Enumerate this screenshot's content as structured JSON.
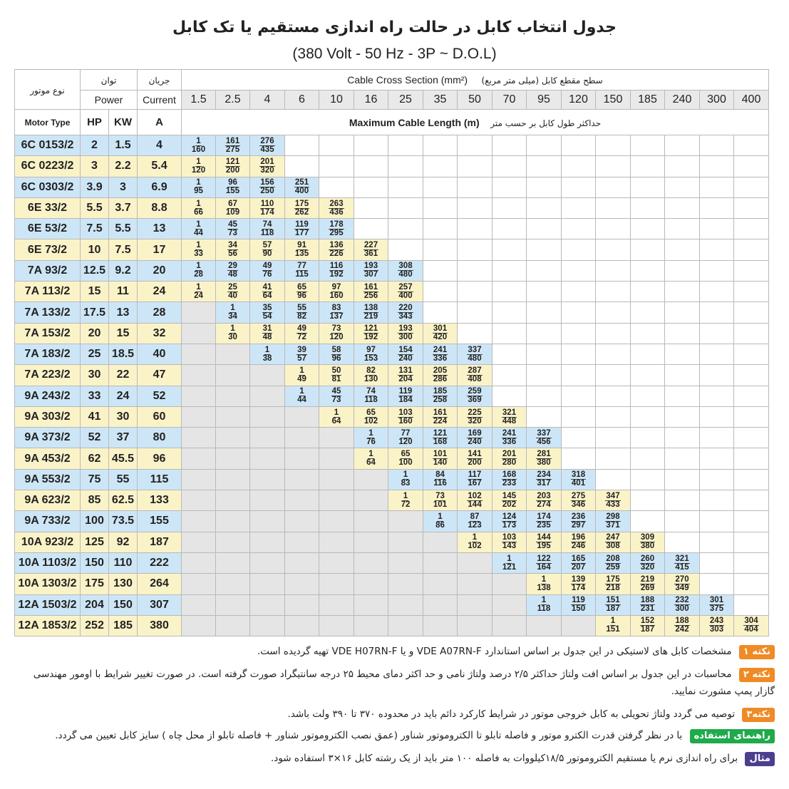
{
  "title_fa": "جدول انتخاب کابل در حالت راه اندازی مستقیم یا تک کابل",
  "title_en": "(380 Volt - 50 Hz - 3P ~ D.O.L)",
  "header": {
    "motor_type_fa": "نوع موتور",
    "motor_type_en": "Motor Type",
    "power_fa": "توان",
    "power_en": "Power",
    "current_fa": "جریان",
    "current_en": "Current",
    "hp": "HP",
    "kw": "KW",
    "amp": "A",
    "ccs_en": "Cable Cross Section (mm²)",
    "ccs_fa_paren": "(میلی متر مربع)",
    "ccs_fa": "سطح مقطع کابل",
    "mcl_en": "Maximum Cable Length (m)",
    "mcl_fa": "حداکثر طول کابل بر حسب متر"
  },
  "sizes": [
    "1.5",
    "2.5",
    "4",
    "6",
    "10",
    "16",
    "25",
    "35",
    "50",
    "70",
    "95",
    "120",
    "150",
    "185",
    "240",
    "300",
    "400"
  ],
  "rows": [
    {
      "motor": "6C 0153/2",
      "hp": "2",
      "kw": "1.5",
      "a": "4",
      "start": 0,
      "vals": [
        [
          "1",
          "160"
        ],
        [
          "161",
          "275"
        ],
        [
          "276",
          "435"
        ]
      ]
    },
    {
      "motor": "6C 0223/2",
      "hp": "3",
      "kw": "2.2",
      "a": "5.4",
      "start": 0,
      "vals": [
        [
          "1",
          "120"
        ],
        [
          "121",
          "200"
        ],
        [
          "201",
          "320"
        ]
      ]
    },
    {
      "motor": "6C 0303/2",
      "hp": "3.9",
      "kw": "3",
      "a": "6.9",
      "start": 0,
      "vals": [
        [
          "1",
          "95"
        ],
        [
          "96",
          "155"
        ],
        [
          "156",
          "250"
        ],
        [
          "251",
          "400"
        ]
      ]
    },
    {
      "motor": "6E 33/2",
      "hp": "5.5",
      "kw": "3.7",
      "a": "8.8",
      "start": 0,
      "vals": [
        [
          "1",
          "66"
        ],
        [
          "67",
          "109"
        ],
        [
          "110",
          "174"
        ],
        [
          "175",
          "262"
        ],
        [
          "263",
          "436"
        ]
      ]
    },
    {
      "motor": "6E 53/2",
      "hp": "7.5",
      "kw": "5.5",
      "a": "13",
      "start": 0,
      "vals": [
        [
          "1",
          "44"
        ],
        [
          "45",
          "73"
        ],
        [
          "74",
          "118"
        ],
        [
          "119",
          "177"
        ],
        [
          "178",
          "295"
        ]
      ]
    },
    {
      "motor": "6E 73/2",
      "hp": "10",
      "kw": "7.5",
      "a": "17",
      "start": 0,
      "vals": [
        [
          "1",
          "33"
        ],
        [
          "34",
          "56"
        ],
        [
          "57",
          "90"
        ],
        [
          "91",
          "135"
        ],
        [
          "136",
          "226"
        ],
        [
          "227",
          "361"
        ]
      ]
    },
    {
      "motor": "7A 93/2",
      "hp": "12.5",
      "kw": "9.2",
      "a": "20",
      "start": 0,
      "vals": [
        [
          "1",
          "28"
        ],
        [
          "29",
          "48"
        ],
        [
          "49",
          "76"
        ],
        [
          "77",
          "115"
        ],
        [
          "116",
          "192"
        ],
        [
          "193",
          "307"
        ],
        [
          "308",
          "480"
        ]
      ]
    },
    {
      "motor": "7A 113/2",
      "hp": "15",
      "kw": "11",
      "a": "24",
      "start": 0,
      "vals": [
        [
          "1",
          "24"
        ],
        [
          "25",
          "40"
        ],
        [
          "41",
          "64"
        ],
        [
          "65",
          "96"
        ],
        [
          "97",
          "160"
        ],
        [
          "161",
          "256"
        ],
        [
          "257",
          "400"
        ]
      ]
    },
    {
      "motor": "7A 133/2",
      "hp": "17.5",
      "kw": "13",
      "a": "28",
      "start": 1,
      "vals": [
        [
          "1",
          "34"
        ],
        [
          "35",
          "54"
        ],
        [
          "55",
          "82"
        ],
        [
          "83",
          "137"
        ],
        [
          "138",
          "219"
        ],
        [
          "220",
          "343"
        ]
      ]
    },
    {
      "motor": "7A 153/2",
      "hp": "20",
      "kw": "15",
      "a": "32",
      "start": 1,
      "vals": [
        [
          "1",
          "30"
        ],
        [
          "31",
          "48"
        ],
        [
          "49",
          "72"
        ],
        [
          "73",
          "120"
        ],
        [
          "121",
          "192"
        ],
        [
          "193",
          "300"
        ],
        [
          "301",
          "420"
        ]
      ]
    },
    {
      "motor": "7A 183/2",
      "hp": "25",
      "kw": "18.5",
      "a": "40",
      "start": 2,
      "vals": [
        [
          "1",
          "38"
        ],
        [
          "39",
          "57"
        ],
        [
          "58",
          "96"
        ],
        [
          "97",
          "153"
        ],
        [
          "154",
          "240"
        ],
        [
          "241",
          "336"
        ],
        [
          "337",
          "480"
        ]
      ]
    },
    {
      "motor": "7A 223/2",
      "hp": "30",
      "kw": "22",
      "a": "47",
      "start": 3,
      "vals": [
        [
          "1",
          "49"
        ],
        [
          "50",
          "81"
        ],
        [
          "82",
          "130"
        ],
        [
          "131",
          "204"
        ],
        [
          "205",
          "286"
        ],
        [
          "287",
          "408"
        ]
      ]
    },
    {
      "motor": "9A 243/2",
      "hp": "33",
      "kw": "24",
      "a": "52",
      "start": 3,
      "vals": [
        [
          "1",
          "44"
        ],
        [
          "45",
          "73"
        ],
        [
          "74",
          "118"
        ],
        [
          "119",
          "184"
        ],
        [
          "185",
          "258"
        ],
        [
          "259",
          "369"
        ]
      ]
    },
    {
      "motor": "9A 303/2",
      "hp": "41",
      "kw": "30",
      "a": "60",
      "start": 4,
      "vals": [
        [
          "1",
          "64"
        ],
        [
          "65",
          "102"
        ],
        [
          "103",
          "160"
        ],
        [
          "161",
          "224"
        ],
        [
          "225",
          "320"
        ],
        [
          "321",
          "448"
        ]
      ]
    },
    {
      "motor": "9A 373/2",
      "hp": "52",
      "kw": "37",
      "a": "80",
      "start": 5,
      "vals": [
        [
          "1",
          "76"
        ],
        [
          "77",
          "120"
        ],
        [
          "121",
          "168"
        ],
        [
          "169",
          "240"
        ],
        [
          "241",
          "336"
        ],
        [
          "337",
          "456"
        ]
      ]
    },
    {
      "motor": "9A 453/2",
      "hp": "62",
      "kw": "45.5",
      "a": "96",
      "start": 5,
      "vals": [
        [
          "1",
          "64"
        ],
        [
          "65",
          "100"
        ],
        [
          "101",
          "140"
        ],
        [
          "141",
          "200"
        ],
        [
          "201",
          "280"
        ],
        [
          "281",
          "380"
        ]
      ]
    },
    {
      "motor": "9A 553/2",
      "hp": "75",
      "kw": "55",
      "a": "115",
      "start": 6,
      "vals": [
        [
          "1",
          "83"
        ],
        [
          "84",
          "116"
        ],
        [
          "117",
          "167"
        ],
        [
          "168",
          "233"
        ],
        [
          "234",
          "317"
        ],
        [
          "318",
          "401"
        ]
      ]
    },
    {
      "motor": "9A 623/2",
      "hp": "85",
      "kw": "62.5",
      "a": "133",
      "start": 6,
      "vals": [
        [
          "1",
          "72"
        ],
        [
          "73",
          "101"
        ],
        [
          "102",
          "144"
        ],
        [
          "145",
          "202"
        ],
        [
          "203",
          "274"
        ],
        [
          "275",
          "346"
        ],
        [
          "347",
          "433"
        ]
      ]
    },
    {
      "motor": "9A 733/2",
      "hp": "100",
      "kw": "73.5",
      "a": "155",
      "start": 7,
      "vals": [
        [
          "1",
          "86"
        ],
        [
          "87",
          "123"
        ],
        [
          "124",
          "173"
        ],
        [
          "174",
          "235"
        ],
        [
          "236",
          "297"
        ],
        [
          "298",
          "371"
        ]
      ]
    },
    {
      "motor": "10A 923/2",
      "hp": "125",
      "kw": "92",
      "a": "187",
      "start": 8,
      "vals": [
        [
          "1",
          "102"
        ],
        [
          "103",
          "143"
        ],
        [
          "144",
          "195"
        ],
        [
          "196",
          "246"
        ],
        [
          "247",
          "308"
        ],
        [
          "309",
          "380"
        ]
      ]
    },
    {
      "motor": "10A 1103/2",
      "hp": "150",
      "kw": "110",
      "a": "222",
      "start": 9,
      "vals": [
        [
          "1",
          "121"
        ],
        [
          "122",
          "164"
        ],
        [
          "165",
          "207"
        ],
        [
          "208",
          "259"
        ],
        [
          "260",
          "320"
        ],
        [
          "321",
          "415"
        ]
      ]
    },
    {
      "motor": "10A 1303/2",
      "hp": "175",
      "kw": "130",
      "a": "264",
      "start": 10,
      "vals": [
        [
          "1",
          "138"
        ],
        [
          "139",
          "174"
        ],
        [
          "175",
          "218"
        ],
        [
          "219",
          "269"
        ],
        [
          "270",
          "349"
        ]
      ]
    },
    {
      "motor": "12A 1503/2",
      "hp": "204",
      "kw": "150",
      "a": "307",
      "start": 10,
      "vals": [
        [
          "1",
          "118"
        ],
        [
          "119",
          "150"
        ],
        [
          "151",
          "187"
        ],
        [
          "188",
          "231"
        ],
        [
          "232",
          "300"
        ],
        [
          "301",
          "375"
        ]
      ]
    },
    {
      "motor": "12A 1853/2",
      "hp": "252",
      "kw": "185",
      "a": "380",
      "start": 12,
      "vals": [
        [
          "1",
          "151"
        ],
        [
          "152",
          "187"
        ],
        [
          "188",
          "242"
        ],
        [
          "243",
          "303"
        ],
        [
          "304",
          "404"
        ]
      ]
    }
  ],
  "colors": {
    "blue": "#cde6f7",
    "yellow": "#fbf3c8",
    "gray": "#e5e5e5",
    "orange": "#f08a24",
    "green": "#1faa4b",
    "purple": "#4b3f8f"
  },
  "notes": [
    {
      "badge": "نکته ۱",
      "color": "orange",
      "text_pre": "مشخصات کابل های لاستیکی در این جدول بر اساس استاندارد",
      "std1": "VDE A07RN-F",
      "mid": "و یا",
      "std2": "VDE H07RN-F",
      "text_post": "تهیه گردیده است."
    },
    {
      "badge": "نکته ۲",
      "color": "orange",
      "text": "محاسبات در این جدول بر اساس افت ولتاژ حداکثر ۲/۵ درصد ولتاژ نامی و حد اکثر دمای محیط ۲۵ درجه سانتیگراد صورت گرفته است. در صورت تغییر شرایط با اومور مهندسی گازار پمپ مشورت نمایید."
    },
    {
      "badge": "نکته۳",
      "color": "orange",
      "text": "توصیه می گردد ولتاژ تحویلی به کابل خروجی موتور در شرایط کارکرد دائم باید در محدوده ۳۷۰ تا ۳۹۰ ولت باشد."
    },
    {
      "badge": "راهنمای استفاده",
      "color": "green",
      "text": "با در نظر گرفتن قدرت الکترو موتور و فاصله تابلو تا الکتروموتور شناور (عمق نصب الکتروموتور شناور + فاصله تابلو از محل چاه ) سایز کابل تعیین می گردد."
    },
    {
      "badge": "مثال",
      "color": "purple",
      "text": "برای راه اندازی نرم یا مستقیم الکتروموتور ۱۸/۵کیلووات به فاصله ۱۰۰ متر باید از یک رشته کابل ۱۶×۳ استفاده شود."
    }
  ]
}
